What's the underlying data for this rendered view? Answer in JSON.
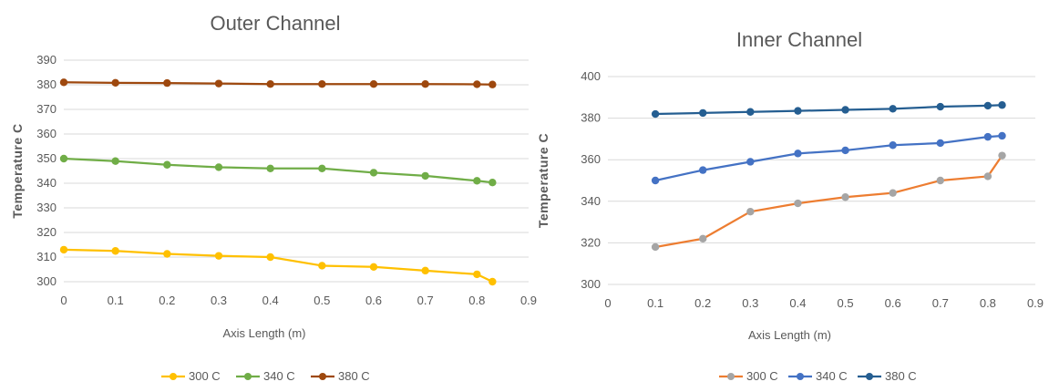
{
  "chart_data": [
    {
      "type": "line",
      "title": "Outer Channel",
      "xlabel": "Axis Length (m)",
      "ylabel": "Temperature C",
      "xlim": [
        0,
        0.9
      ],
      "ylim": [
        300,
        390
      ],
      "xticks": [
        "0",
        "0.1",
        "0.2",
        "0.3",
        "0.4",
        "0.5",
        "0.6",
        "0.7",
        "0.8",
        "0.9"
      ],
      "yticks": [
        "300",
        "310",
        "320",
        "330",
        "340",
        "350",
        "360",
        "370",
        "380",
        "390"
      ],
      "grid": true,
      "legend": "bottom",
      "x": [
        0,
        0.1,
        0.2,
        0.3,
        0.4,
        0.5,
        0.6,
        0.7,
        0.8,
        0.83
      ],
      "series": [
        {
          "name": "300 C",
          "color": "#FFC000",
          "marker_color": "#FFC000",
          "values": [
            313,
            312.5,
            311.3,
            310.5,
            310,
            306.5,
            306,
            304.5,
            303,
            300
          ]
        },
        {
          "name": "340 C",
          "color": "#70AD47",
          "marker_color": "#70AD47",
          "values": [
            350,
            349,
            347.5,
            346.5,
            346,
            346,
            344.3,
            343,
            341,
            340.3
          ]
        },
        {
          "name": "380 C",
          "color": "#9E480E",
          "marker_color": "#9E480E",
          "values": [
            381,
            380.8,
            380.7,
            380.5,
            380.3,
            380.3,
            380.3,
            380.3,
            380.2,
            380.1
          ]
        }
      ]
    },
    {
      "type": "line",
      "title": "Inner Channel",
      "xlabel": "Axis Length (m)",
      "ylabel": "Temperature C",
      "xlim": [
        0,
        0.9
      ],
      "ylim": [
        300,
        400
      ],
      "xticks": [
        "0",
        "0.1",
        "0.2",
        "0.3",
        "0.4",
        "0.5",
        "0.6",
        "0.7",
        "0.8",
        "0.9"
      ],
      "yticks": [
        "300",
        "320",
        "340",
        "360",
        "380",
        "400"
      ],
      "grid": true,
      "legend": "bottom",
      "x": [
        0.1,
        0.2,
        0.3,
        0.4,
        0.5,
        0.6,
        0.7,
        0.8,
        0.83
      ],
      "series": [
        {
          "name": "300 C",
          "color": "#ED7D31",
          "marker_color": "#A5A5A5",
          "values": [
            318,
            322,
            335,
            339,
            342,
            344,
            350,
            352,
            362
          ]
        },
        {
          "name": "340 C",
          "color": "#4472C4",
          "marker_color": "#4472C4",
          "values": [
            350,
            355,
            359,
            363,
            364.5,
            367,
            368,
            371,
            371.5
          ]
        },
        {
          "name": "380 C",
          "color": "#255E91",
          "marker_color": "#255E91",
          "values": [
            382,
            382.5,
            383,
            383.5,
            384,
            384.5,
            385.5,
            386,
            386.3
          ]
        }
      ]
    }
  ]
}
